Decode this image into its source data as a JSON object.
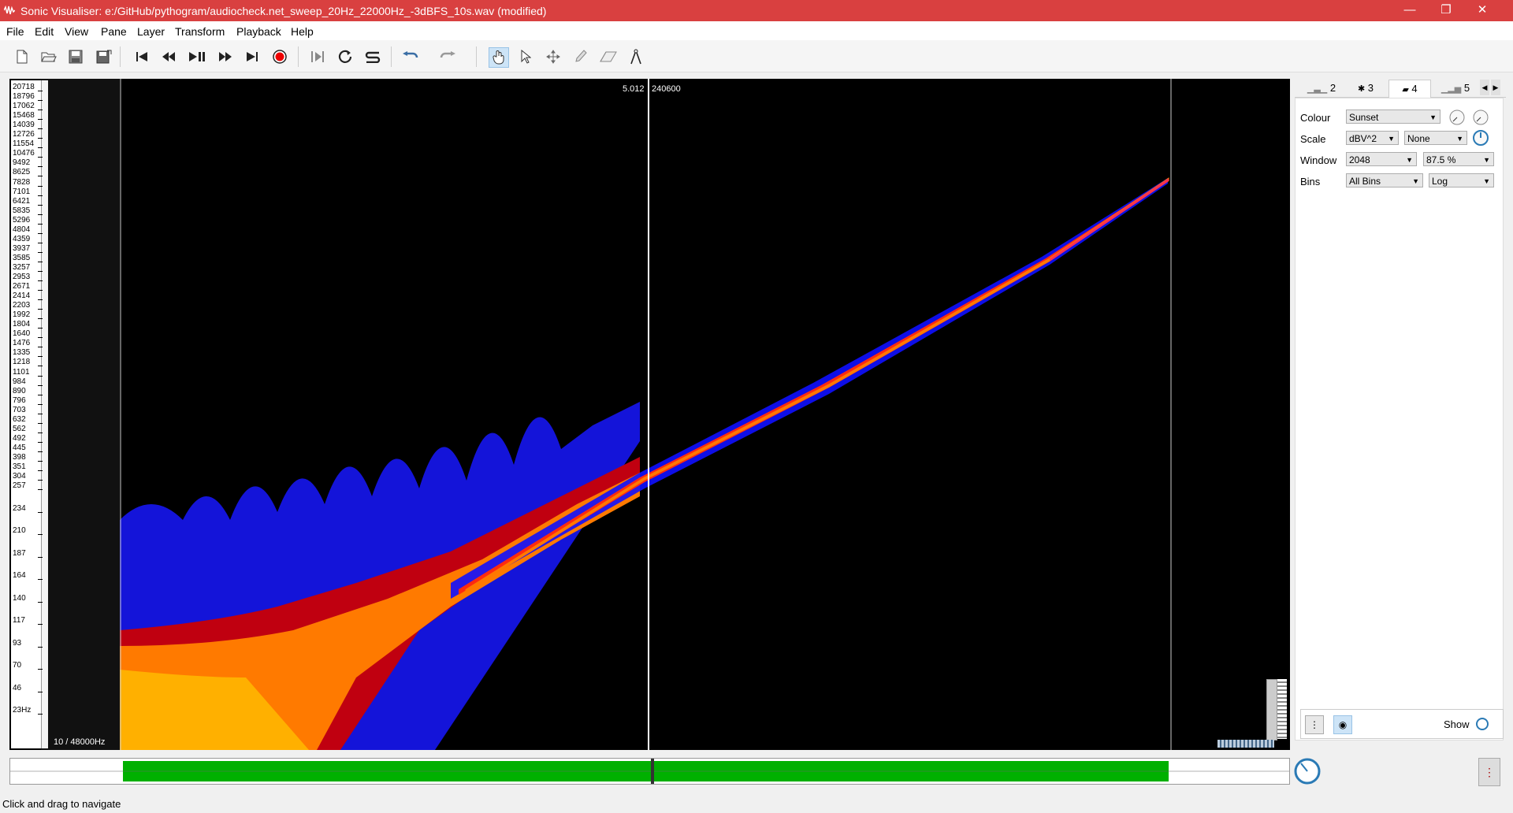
{
  "window": {
    "title": "Sonic Visualiser: e:/GitHub/pythogram/audiocheck.net_sweep_20Hz_22000Hz_-3dBFS_10s.wav (modified)",
    "controls": {
      "minimize": "—",
      "restore": "❐",
      "close": "✕"
    }
  },
  "menu": [
    "File",
    "Edit",
    "View",
    "Pane",
    "Layer",
    "Transform",
    "Playback",
    "Help"
  ],
  "toolbar": {
    "icons": [
      "new-file-icon",
      "open-file-icon",
      "save-icon",
      "save-as-icon",
      "rewind-start-icon",
      "rewind-icon",
      "play-pause-icon",
      "fast-forward-icon",
      "forward-end-icon",
      "record-icon",
      "constrained-playback-icon",
      "loop-icon",
      "solo-icon",
      "undo-icon",
      "redo-icon",
      "navigate-tool-icon",
      "select-tool-icon",
      "move-tool-icon",
      "draw-tool-icon",
      "erase-tool-icon",
      "measure-tool-icon"
    ]
  },
  "pane": {
    "cursor_time": "5.012",
    "cursor_frame": "240600",
    "range_label": "10 / 48000Hz",
    "freq_ticks": [
      "20718",
      "18796",
      "17062",
      "15468",
      "14039",
      "12726",
      "11554",
      "10476",
      "9492",
      "8625",
      "7828",
      "7101",
      "6421",
      "5835",
      "5296",
      "4804",
      "4359",
      "3937",
      "3585",
      "3257",
      "2953",
      "2671",
      "2414",
      "2203",
      "1992",
      "1804",
      "1640",
      "1476",
      "1335",
      "1218",
      "1101",
      "984",
      "890",
      "796",
      "703",
      "632",
      "562",
      "492",
      "445",
      "398",
      "351",
      "304",
      "257",
      "234",
      "210",
      "187",
      "164",
      "140",
      "117",
      "93",
      "70",
      "46",
      "23Hz"
    ]
  },
  "layer_panel": {
    "tabs": [
      "2",
      "3",
      "4",
      "5"
    ],
    "active_tab": "4",
    "colour_label": "Colour",
    "colour_value": "Sunset",
    "scale_label": "Scale",
    "scale_value": "dBV^2",
    "scale_norm": "None",
    "window_label": "Window",
    "window_value": "2048",
    "window_overlap": "87.5 %",
    "bins_label": "Bins",
    "bins_value": "All Bins",
    "bins_scale": "Log",
    "show_label": "Show"
  },
  "status": {
    "message": "Click and drag to navigate"
  },
  "colors": {
    "titlebar": "#d94040",
    "waveform": "#00b000",
    "sweep": "#ff2a40"
  }
}
